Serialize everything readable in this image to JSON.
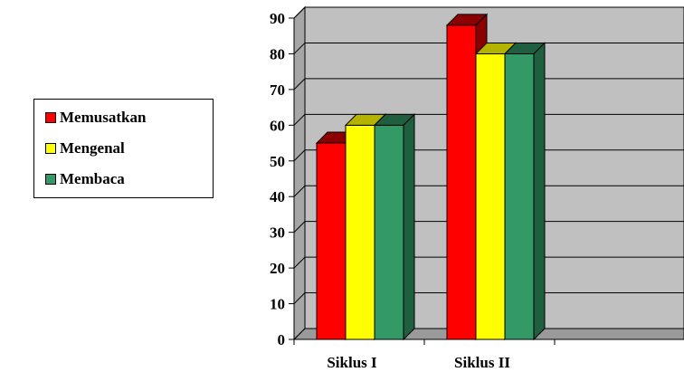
{
  "chart_data": {
    "type": "bar",
    "style": "3d-clustered-column",
    "categories": [
      "Siklus I",
      "Siklus II"
    ],
    "series": [
      {
        "name": "Memusatkan",
        "values": [
          55,
          88
        ],
        "color": "#ff0000",
        "side_color": "#8b0000"
      },
      {
        "name": "Mengenal",
        "values": [
          60,
          80
        ],
        "color": "#ffff00",
        "side_color": "#b3b300"
      },
      {
        "name": "Membaca",
        "values": [
          60,
          80
        ],
        "color": "#339966",
        "side_color": "#1f5e3e"
      }
    ],
    "ylim": [
      0,
      90
    ],
    "yticks": [
      "0",
      "10",
      "20",
      "30",
      "40",
      "50",
      "60",
      "70",
      "80",
      "90"
    ],
    "grid": true,
    "legend_position": "left",
    "wall_color": "#c0c0c0"
  }
}
